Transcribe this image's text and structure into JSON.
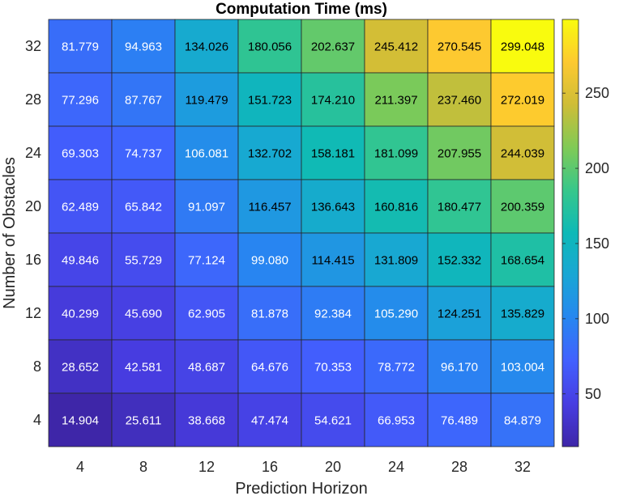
{
  "chart_data": {
    "type": "heatmap",
    "title": "Computation Time (ms)",
    "xlabel": "Prediction Horizon",
    "ylabel": "Number of Obstacles",
    "x_categories": [
      "4",
      "8",
      "12",
      "16",
      "20",
      "24",
      "28",
      "32"
    ],
    "y_categories": [
      "32",
      "28",
      "24",
      "20",
      "16",
      "12",
      "8",
      "4"
    ],
    "values": [
      [
        81.779,
        94.963,
        134.026,
        180.056,
        202.637,
        245.412,
        270.545,
        299.048
      ],
      [
        77.296,
        87.767,
        119.479,
        151.723,
        174.21,
        211.397,
        237.46,
        272.019
      ],
      [
        69.303,
        74.737,
        106.081,
        132.702,
        158.181,
        181.099,
        207.955,
        244.039
      ],
      [
        62.489,
        65.842,
        91.097,
        116.457,
        136.643,
        160.816,
        180.477,
        200.359
      ],
      [
        49.846,
        55.729,
        77.124,
        99.08,
        114.415,
        131.809,
        152.332,
        168.654
      ],
      [
        40.299,
        45.69,
        62.905,
        81.878,
        92.384,
        105.29,
        124.251,
        135.829
      ],
      [
        28.652,
        42.581,
        48.687,
        64.676,
        70.353,
        78.772,
        96.17,
        103.004
      ],
      [
        14.904,
        25.611,
        38.668,
        47.474,
        54.621,
        66.953,
        76.489,
        84.879
      ]
    ],
    "value_labels": [
      [
        "81.779",
        "94.963",
        "134.026",
        "180.056",
        "202.637",
        "245.412",
        "270.545",
        "299.048"
      ],
      [
        "77.296",
        "87.767",
        "119.479",
        "151.723",
        "174.210",
        "211.397",
        "237.460",
        "272.019"
      ],
      [
        "69.303",
        "74.737",
        "106.081",
        "132.702",
        "158.181",
        "181.099",
        "207.955",
        "244.039"
      ],
      [
        "62.489",
        "65.842",
        "91.097",
        "116.457",
        "136.643",
        "160.816",
        "180.477",
        "200.359"
      ],
      [
        "49.846",
        "55.729",
        "77.124",
        "99.080",
        "114.415",
        "131.809",
        "152.332",
        "168.654"
      ],
      [
        "40.299",
        "45.690",
        "62.905",
        "81.878",
        "92.384",
        "105.290",
        "124.251",
        "135.829"
      ],
      [
        "28.652",
        "42.581",
        "48.687",
        "64.676",
        "70.353",
        "78.772",
        "96.170",
        "103.004"
      ],
      [
        "14.904",
        "25.611",
        "38.668",
        "47.474",
        "54.621",
        "66.953",
        "76.489",
        "84.879"
      ]
    ],
    "colorscale": "parula",
    "color_range": [
      14.904,
      299.048
    ],
    "colorbar_ticks": [
      50,
      100,
      150,
      200,
      250
    ],
    "colorbar_tick_labels": [
      "50",
      "100",
      "150",
      "200",
      "250"
    ],
    "cell_text_colors": {
      "light": "#ffffff",
      "dark": "#000000"
    },
    "grid": true
  }
}
